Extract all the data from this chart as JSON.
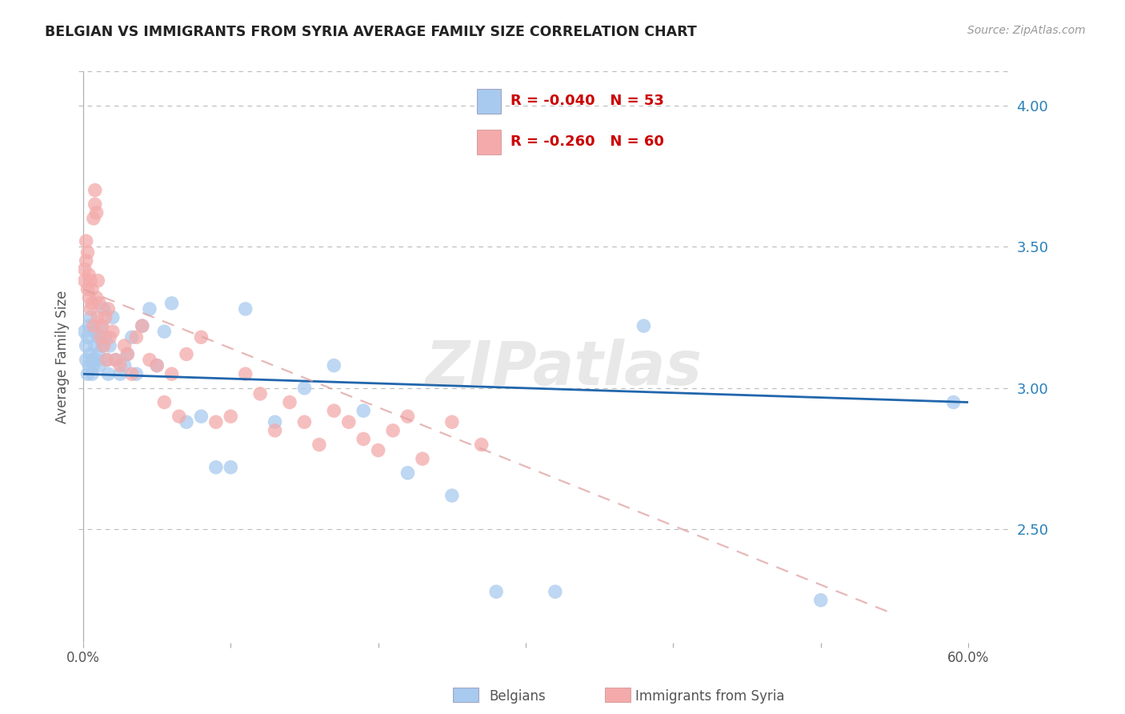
{
  "title": "BELGIAN VS IMMIGRANTS FROM SYRIA AVERAGE FAMILY SIZE CORRELATION CHART",
  "source": "Source: ZipAtlas.com",
  "ylabel": "Average Family Size",
  "watermark": "ZIPatlas",
  "right_yticks": [
    2.5,
    3.0,
    3.5,
    4.0
  ],
  "ylim": [
    2.1,
    4.12
  ],
  "xlim": [
    -0.003,
    0.63
  ],
  "belgians_R": -0.04,
  "belgians_N": 53,
  "syria_R": -0.26,
  "syria_N": 60,
  "belgians_color": "#A8CAEE",
  "syria_color": "#F4AAAA",
  "belgians_line_color": "#2166AC",
  "syria_line_color": "#E0A0A0",
  "belgians_x": [
    0.001,
    0.002,
    0.002,
    0.003,
    0.003,
    0.004,
    0.004,
    0.005,
    0.005,
    0.006,
    0.006,
    0.007,
    0.008,
    0.008,
    0.009,
    0.01,
    0.01,
    0.011,
    0.012,
    0.013,
    0.014,
    0.015,
    0.016,
    0.017,
    0.018,
    0.02,
    0.022,
    0.025,
    0.028,
    0.03,
    0.033,
    0.036,
    0.04,
    0.045,
    0.05,
    0.055,
    0.06,
    0.07,
    0.08,
    0.09,
    0.1,
    0.11,
    0.13,
    0.15,
    0.17,
    0.19,
    0.22,
    0.25,
    0.28,
    0.32,
    0.38,
    0.5,
    0.59
  ],
  "belgians_y": [
    3.2,
    3.15,
    3.1,
    3.18,
    3.05,
    3.22,
    3.08,
    3.12,
    3.25,
    3.1,
    3.05,
    3.08,
    3.15,
    3.2,
    3.1,
    3.12,
    3.18,
    3.08,
    3.22,
    3.15,
    3.28,
    3.18,
    3.1,
    3.05,
    3.15,
    3.25,
    3.1,
    3.05,
    3.08,
    3.12,
    3.18,
    3.05,
    3.22,
    3.28,
    3.08,
    3.2,
    3.3,
    2.88,
    2.9,
    2.72,
    2.72,
    3.28,
    2.88,
    3.0,
    3.08,
    2.92,
    2.7,
    2.62,
    2.28,
    2.28,
    3.22,
    2.25,
    2.95
  ],
  "syria_x": [
    0.001,
    0.001,
    0.002,
    0.002,
    0.003,
    0.003,
    0.004,
    0.004,
    0.005,
    0.005,
    0.006,
    0.006,
    0.007,
    0.007,
    0.008,
    0.008,
    0.009,
    0.009,
    0.01,
    0.01,
    0.011,
    0.012,
    0.013,
    0.014,
    0.015,
    0.016,
    0.017,
    0.018,
    0.02,
    0.022,
    0.025,
    0.028,
    0.03,
    0.033,
    0.036,
    0.04,
    0.045,
    0.05,
    0.055,
    0.06,
    0.065,
    0.07,
    0.08,
    0.09,
    0.1,
    0.11,
    0.12,
    0.13,
    0.14,
    0.15,
    0.16,
    0.17,
    0.18,
    0.19,
    0.2,
    0.21,
    0.22,
    0.23,
    0.25,
    0.27
  ],
  "syria_y": [
    3.42,
    3.38,
    3.45,
    3.52,
    3.48,
    3.35,
    3.4,
    3.32,
    3.38,
    3.28,
    3.35,
    3.3,
    3.22,
    3.6,
    3.65,
    3.7,
    3.62,
    3.32,
    3.38,
    3.25,
    3.3,
    3.18,
    3.22,
    3.15,
    3.25,
    3.1,
    3.28,
    3.18,
    3.2,
    3.1,
    3.08,
    3.15,
    3.12,
    3.05,
    3.18,
    3.22,
    3.1,
    3.08,
    2.95,
    3.05,
    2.9,
    3.12,
    3.18,
    2.88,
    2.9,
    3.05,
    2.98,
    2.85,
    2.95,
    2.88,
    2.8,
    2.92,
    2.88,
    2.82,
    2.78,
    2.85,
    2.9,
    2.75,
    2.88,
    2.8
  ]
}
